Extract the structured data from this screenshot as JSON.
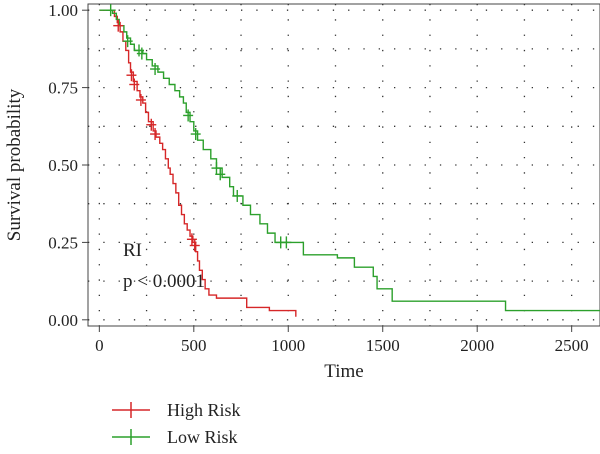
{
  "chart_data": {
    "type": "line",
    "subtype": "kaplan-meier",
    "title": "",
    "xlabel": "Time",
    "ylabel": "Survival probability",
    "xlim": [
      -60,
      2650
    ],
    "ylim": [
      -0.02,
      1.02
    ],
    "xticks": [
      0,
      500,
      1000,
      1500,
      2000,
      2500
    ],
    "yticks": [
      0.0,
      0.25,
      0.5,
      0.75,
      1.0
    ],
    "ytick_labels": [
      "0.00",
      "0.25",
      "0.50",
      "0.75",
      "1.00"
    ],
    "grid": true,
    "annotations": [
      "RI",
      "p < 0.0001"
    ],
    "legend_position": "bottom-left",
    "series": [
      {
        "name": "High Risk",
        "color": "#d62728",
        "steps": [
          [
            0,
            1.0
          ],
          [
            70,
            1.0
          ],
          [
            80,
            0.98
          ],
          [
            95,
            0.96
          ],
          [
            110,
            0.93
          ],
          [
            125,
            0.9
          ],
          [
            140,
            0.87
          ],
          [
            155,
            0.83
          ],
          [
            165,
            0.8
          ],
          [
            180,
            0.77
          ],
          [
            200,
            0.74
          ],
          [
            215,
            0.72
          ],
          [
            230,
            0.7
          ],
          [
            245,
            0.67
          ],
          [
            260,
            0.64
          ],
          [
            285,
            0.61
          ],
          [
            300,
            0.59
          ],
          [
            320,
            0.57
          ],
          [
            335,
            0.55
          ],
          [
            350,
            0.52
          ],
          [
            365,
            0.49
          ],
          [
            375,
            0.47
          ],
          [
            390,
            0.44
          ],
          [
            405,
            0.41
          ],
          [
            420,
            0.37
          ],
          [
            435,
            0.34
          ],
          [
            450,
            0.31
          ],
          [
            465,
            0.29
          ],
          [
            480,
            0.27
          ],
          [
            495,
            0.25
          ],
          [
            510,
            0.22
          ],
          [
            520,
            0.19
          ],
          [
            530,
            0.16
          ],
          [
            545,
            0.13
          ],
          [
            560,
            0.1
          ],
          [
            580,
            0.08
          ],
          [
            620,
            0.07
          ],
          [
            680,
            0.07
          ],
          [
            780,
            0.04
          ],
          [
            900,
            0.03
          ],
          [
            1040,
            0.01
          ]
        ],
        "censored": [
          [
            100,
            0.95
          ],
          [
            170,
            0.79
          ],
          [
            185,
            0.76
          ],
          [
            220,
            0.71
          ],
          [
            275,
            0.63
          ],
          [
            295,
            0.6
          ],
          [
            490,
            0.26
          ],
          [
            505,
            0.24
          ]
        ]
      },
      {
        "name": "Low Risk",
        "color": "#2ca02c",
        "steps": [
          [
            0,
            1.0
          ],
          [
            50,
            1.0
          ],
          [
            70,
            0.99
          ],
          [
            90,
            0.97
          ],
          [
            105,
            0.95
          ],
          [
            130,
            0.93
          ],
          [
            145,
            0.91
          ],
          [
            165,
            0.89
          ],
          [
            185,
            0.87
          ],
          [
            230,
            0.86
          ],
          [
            250,
            0.84
          ],
          [
            280,
            0.82
          ],
          [
            310,
            0.8
          ],
          [
            340,
            0.78
          ],
          [
            370,
            0.76
          ],
          [
            400,
            0.74
          ],
          [
            425,
            0.72
          ],
          [
            445,
            0.7
          ],
          [
            460,
            0.67
          ],
          [
            480,
            0.64
          ],
          [
            500,
            0.61
          ],
          [
            520,
            0.58
          ],
          [
            550,
            0.55
          ],
          [
            590,
            0.52
          ],
          [
            620,
            0.49
          ],
          [
            650,
            0.46
          ],
          [
            690,
            0.43
          ],
          [
            710,
            0.4
          ],
          [
            760,
            0.37
          ],
          [
            800,
            0.34
          ],
          [
            850,
            0.31
          ],
          [
            890,
            0.28
          ],
          [
            930,
            0.25
          ],
          [
            1060,
            0.25
          ],
          [
            1080,
            0.21
          ],
          [
            1240,
            0.21
          ],
          [
            1260,
            0.2
          ],
          [
            1350,
            0.17
          ],
          [
            1450,
            0.14
          ],
          [
            1470,
            0.1
          ],
          [
            1550,
            0.06
          ],
          [
            2150,
            0.03
          ],
          [
            2650,
            0.03
          ]
        ],
        "censored": [
          [
            60,
            1.0
          ],
          [
            150,
            0.9
          ],
          [
            210,
            0.87
          ],
          [
            225,
            0.86
          ],
          [
            295,
            0.81
          ],
          [
            470,
            0.66
          ],
          [
            510,
            0.6
          ],
          [
            620,
            0.49
          ],
          [
            640,
            0.47
          ],
          [
            730,
            0.4
          ],
          [
            960,
            0.25
          ],
          [
            990,
            0.25
          ]
        ]
      }
    ]
  }
}
